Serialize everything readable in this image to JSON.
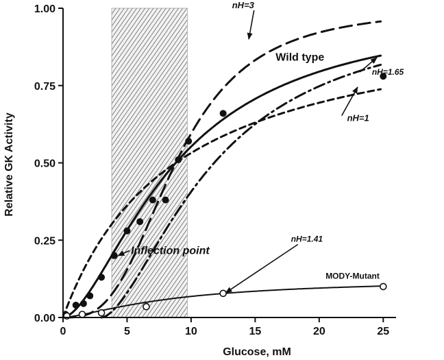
{
  "chart_data": {
    "type": "line",
    "xlabel": "Glucose, mM",
    "ylabel": "Relative GK Activity",
    "xlim": [
      0,
      26
    ],
    "ylim": [
      0,
      1.0
    ],
    "x_ticks": [
      0,
      5,
      10,
      15,
      20,
      25
    ],
    "y_ticks": [
      0.0,
      0.25,
      0.5,
      0.75,
      1.0
    ],
    "x_tick_labels": [
      "0",
      "5",
      "10",
      "15",
      "20",
      "25"
    ],
    "y_tick_labels": [
      "0.00",
      "0.25",
      "0.50",
      "0.75",
      "1.00"
    ],
    "shaded_region": {
      "x_start": 3.8,
      "x_end": 9.7
    },
    "series": [
      {
        "style": "dashed-long",
        "curve": {
          "s05": 8.8,
          "nH": 3,
          "vmax": 1.0
        }
      },
      {
        "style": "solid",
        "curve": {
          "s05": 8.8,
          "nH": 1.65,
          "vmax": 1.0
        }
      },
      {
        "style": "dashed-short",
        "curve": {
          "s05": 8.8,
          "nH": 1,
          "vmax": 1.0
        }
      },
      {
        "style": "dash-dot",
        "curve": {
          "s05": 8.8,
          "nH": 1.65,
          "vmax": 1.0,
          "x_offset": 3.0
        }
      },
      {
        "style": "filled-points",
        "points": [
          [
            0.2,
            0.01
          ],
          [
            1.0,
            0.04
          ],
          [
            1.6,
            0.045
          ],
          [
            2.1,
            0.07
          ],
          [
            3.0,
            0.13
          ],
          [
            4.0,
            0.2
          ],
          [
            5.0,
            0.28
          ],
          [
            6.0,
            0.31
          ],
          [
            7.0,
            0.38
          ],
          [
            8.0,
            0.38
          ],
          [
            9.0,
            0.51
          ],
          [
            9.8,
            0.57
          ],
          [
            12.5,
            0.66
          ],
          [
            25.0,
            0.78
          ]
        ]
      },
      {
        "style": "open-points-solid",
        "points": [
          [
            0.3,
            0.005
          ],
          [
            1.5,
            0.01
          ],
          [
            3.0,
            0.015
          ],
          [
            6.5,
            0.035
          ],
          [
            12.5,
            0.078
          ],
          [
            25.0,
            0.1
          ]
        ],
        "curve": {
          "s05": 8.8,
          "nH": 1.41,
          "vmax": 0.125,
          "from": 0.3
        }
      }
    ],
    "annotations": [
      {
        "text": "nH=3",
        "x": 13.2,
        "y": 1.0,
        "arrow_to": [
          14.5,
          0.9
        ]
      },
      {
        "text": "Wild type",
        "x": 16.6,
        "y": 0.83,
        "arrow_to": null
      },
      {
        "text": "nH=1.65",
        "x": 26.6,
        "y": 0.785,
        "arrow_to": [
          24.5,
          0.84
        ]
      },
      {
        "text": "nH=1",
        "x": 23.9,
        "y": 0.635,
        "arrow_to": [
          23.0,
          0.745
        ]
      },
      {
        "text": "Inflection point",
        "x": 5.3,
        "y": 0.205,
        "arrow_to": [
          4.3,
          0.2
        ]
      },
      {
        "text": "nH=1.41",
        "x": 17.8,
        "y": 0.245,
        "arrow_to": [
          12.7,
          0.08
        ]
      },
      {
        "text": "MODY-Mutant",
        "x": 20.5,
        "y": 0.125,
        "arrow_to": null
      }
    ]
  }
}
